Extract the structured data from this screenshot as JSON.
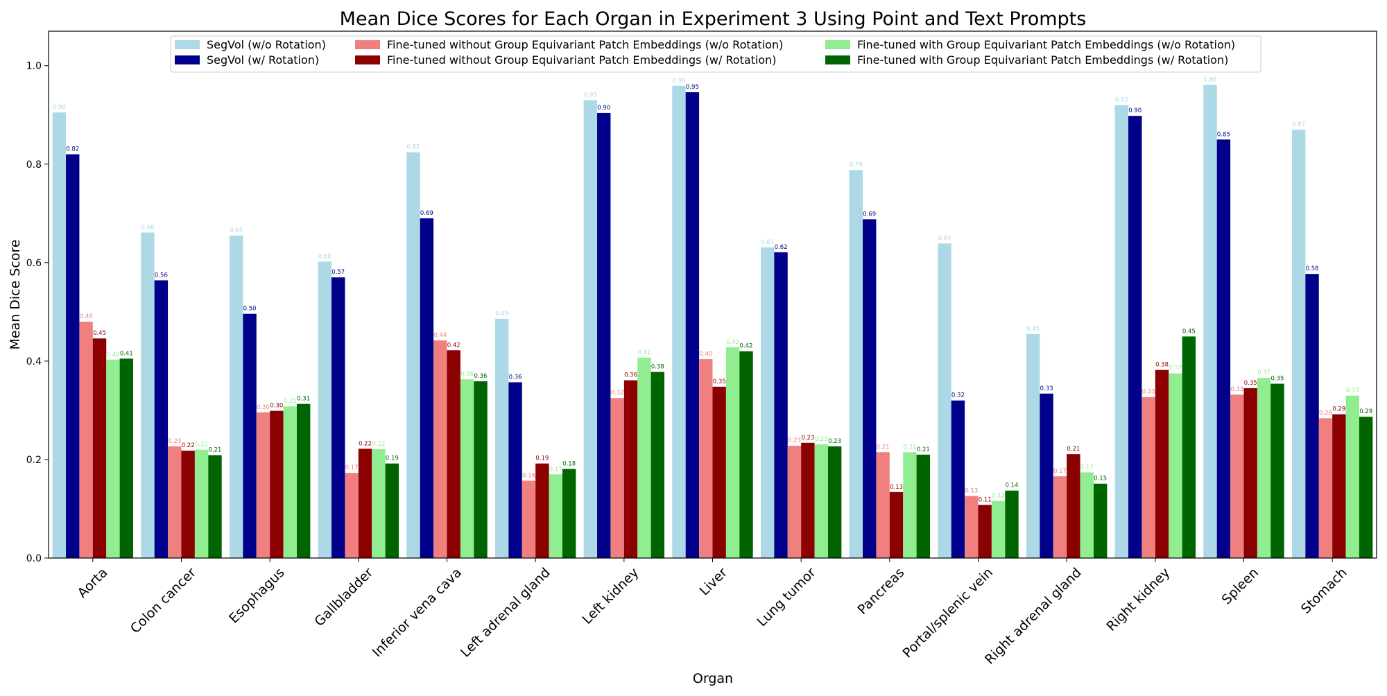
{
  "chart_data": {
    "type": "bar",
    "title": "Mean Dice Scores for Each Organ in Experiment 3 Using Point and Text Prompts",
    "xlabel": "Organ",
    "ylabel": "Mean Dice Score",
    "ylim": [
      0,
      1.07
    ],
    "yticks": [
      "0.0",
      "0.2",
      "0.4",
      "0.6",
      "0.8",
      "1.0"
    ],
    "grid": false,
    "legend_position": "top-center",
    "categories": [
      "Aorta",
      "Colon cancer",
      "Esophagus",
      "Gallbladder",
      "Inferior vena cava",
      "Left adrenal gland",
      "Left kidney",
      "Liver",
      "Lung tumor",
      "Pancreas",
      "Portal/splenic vein",
      "Right adrenal gland",
      "Right kidney",
      "Spleen",
      "Stomach"
    ],
    "series": [
      {
        "name": "SegVol (w/o Rotation)",
        "color": "#add8e6",
        "values": [
          0.905,
          0.661,
          0.655,
          0.602,
          0.824,
          0.486,
          0.93,
          0.959,
          0.631,
          0.788,
          0.639,
          0.455,
          0.92,
          0.961,
          0.87
        ],
        "labels": [
          "0.90",
          "0.66",
          "0.65",
          "0.60",
          "0.82",
          "0.49",
          "0.93",
          "0.96",
          "0.63",
          "0.79",
          "0.64",
          "0.45",
          "0.92",
          "0.96",
          "0.87"
        ]
      },
      {
        "name": "SegVol (w/ Rotation)",
        "color": "#00008b",
        "values": [
          0.82,
          0.564,
          0.496,
          0.57,
          0.69,
          0.357,
          0.904,
          0.946,
          0.621,
          0.688,
          0.32,
          0.334,
          0.898,
          0.85,
          0.577
        ],
        "labels": [
          "0.82",
          "0.56",
          "0.50",
          "0.57",
          "0.69",
          "0.36",
          "0.90",
          "0.95",
          "0.62",
          "0.69",
          "0.32",
          "0.33",
          "0.90",
          "0.85",
          "0.58"
        ]
      },
      {
        "name": "Fine-tuned without Group Equivariant Patch Embeddings (w/o Rotation)",
        "color": "#f08080",
        "values": [
          0.48,
          0.227,
          0.296,
          0.173,
          0.442,
          0.157,
          0.325,
          0.404,
          0.228,
          0.215,
          0.126,
          0.166,
          0.327,
          0.332,
          0.284
        ],
        "labels": [
          "0.48",
          "0.23",
          "0.30",
          "0.17",
          "0.44",
          "0.16",
          "0.32",
          "0.40",
          "0.23",
          "0.21",
          "0.13",
          "0.17",
          "0.33",
          "0.33",
          "0.28"
        ]
      },
      {
        "name": "Fine-tuned without Group Equivariant Patch Embeddings (w/ Rotation)",
        "color": "#8b0000",
        "values": [
          0.446,
          0.218,
          0.299,
          0.222,
          0.422,
          0.192,
          0.361,
          0.348,
          0.234,
          0.134,
          0.108,
          0.211,
          0.382,
          0.345,
          0.292
        ],
        "labels": [
          "0.45",
          "0.22",
          "0.30",
          "0.22",
          "0.42",
          "0.19",
          "0.36",
          "0.35",
          "0.23",
          "0.13",
          "0.11",
          "0.21",
          "0.38",
          "0.35",
          "0.29"
        ]
      },
      {
        "name": "Fine-tuned with Group Equivariant Patch Embeddings (w/o Rotation)",
        "color": "#90ee90",
        "values": [
          0.403,
          0.22,
          0.308,
          0.221,
          0.363,
          0.17,
          0.407,
          0.428,
          0.231,
          0.215,
          0.116,
          0.174,
          0.375,
          0.366,
          0.33
        ],
        "labels": [
          "0.40",
          "0.22",
          "0.31",
          "0.22",
          "0.36",
          "0.17",
          "0.41",
          "0.43",
          "0.23",
          "0.21",
          "0.12",
          "0.17",
          "0.37",
          "0.37",
          "0.33"
        ]
      },
      {
        "name": "Fine-tuned with Group Equivariant Patch Embeddings (w/ Rotation)",
        "color": "#006400",
        "values": [
          0.405,
          0.209,
          0.313,
          0.192,
          0.359,
          0.181,
          0.378,
          0.42,
          0.227,
          0.21,
          0.137,
          0.151,
          0.45,
          0.354,
          0.287
        ],
        "labels": [
          "0.41",
          "0.21",
          "0.31",
          "0.19",
          "0.36",
          "0.18",
          "0.38",
          "0.42",
          "0.23",
          "0.21",
          "0.14",
          "0.15",
          "0.45",
          "0.35",
          "0.29"
        ]
      }
    ]
  }
}
